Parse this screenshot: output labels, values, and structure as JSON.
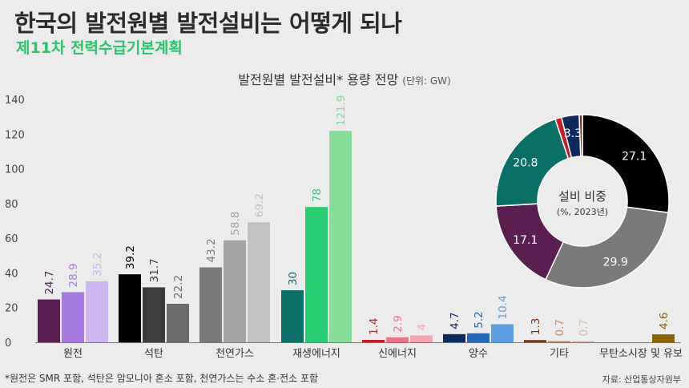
{
  "header": {
    "title": "한국의 발전원별 발전설비는 어떻게 되나",
    "subtitle": "제11차 전력수급기본계획"
  },
  "footer": {
    "footnote": "*원전은 SMR 포함, 석탄은 암모니아 혼소 포함, 천연가스는 수소 혼·전소 포함",
    "source": "자료: 산업통상자원부"
  },
  "chart_data": [
    {
      "type": "bar",
      "title": "발전원별 발전설비* 용량 전망",
      "unit_note": "(단위: GW)",
      "ylim": [
        0,
        140
      ],
      "yticks": [
        0,
        20,
        40,
        60,
        80,
        100,
        120,
        140
      ],
      "grid": false,
      "legend": "none",
      "categories": [
        "원전",
        "석탄",
        "천연가스",
        "재생에너지",
        "신에너지",
        "양수",
        "기타",
        "무탄소시장 및 유보"
      ],
      "groups": [
        {
          "values": [
            24.7,
            28.9,
            35.2
          ],
          "labels": [
            "24.7",
            "28.9",
            "35.2"
          ],
          "colors": [
            "#5a1f50",
            "#a57be0",
            "#cdb5ef"
          ]
        },
        {
          "values": [
            39.2,
            31.7,
            22.2
          ],
          "labels": [
            "39.2",
            "31.7",
            "22.2"
          ],
          "colors": [
            "#000000",
            "#3d3d3d",
            "#6b6b6b"
          ]
        },
        {
          "values": [
            43.2,
            58.8,
            69.2
          ],
          "labels": [
            "43.2",
            "58.8",
            "69.2"
          ],
          "colors": [
            "#7a7a7a",
            "#a3a3a3",
            "#c2c2c2"
          ]
        },
        {
          "values": [
            30,
            78,
            121.9
          ],
          "labels": [
            "30",
            "78",
            "121.9"
          ],
          "colors": [
            "#0a7067",
            "#29cd72",
            "#86dd97"
          ]
        },
        {
          "values": [
            1.4,
            2.9,
            4
          ],
          "labels": [
            "1.4",
            "2.9",
            "4"
          ],
          "colors": [
            "#c61d27",
            "#f07280",
            "#f4a4ae"
          ]
        },
        {
          "values": [
            4.7,
            5.2,
            10.4
          ],
          "labels": [
            "4.7",
            "5.2",
            "10.4"
          ],
          "colors": [
            "#0c2a5b",
            "#2467b8",
            "#5b9fe0"
          ]
        },
        {
          "values": [
            1.3,
            0.7,
            0.7
          ],
          "labels": [
            "1.3",
            "0.7",
            "0.7"
          ],
          "colors": [
            "#743818",
            "#c88a6c",
            "#e0b9a4"
          ]
        },
        {
          "values": [
            4.6
          ],
          "labels": [
            "4.6"
          ],
          "colors": [
            "#8b6400"
          ]
        }
      ]
    },
    {
      "type": "pie",
      "center_label": "설비 비중",
      "center_sublabel": "(%, 2023년)",
      "slices": [
        {
          "value": 27.1,
          "label": "27.1",
          "color": "#000000"
        },
        {
          "value": 29.9,
          "label": "29.9",
          "color": "#7a7a7a"
        },
        {
          "value": 17.1,
          "label": "17.1",
          "color": "#5a1f50"
        },
        {
          "value": 20.8,
          "label": "20.8",
          "color": "#0a7067"
        },
        {
          "value": 1.2,
          "label": "",
          "color": "#c61d27"
        },
        {
          "value": 3.3,
          "label": "3.3",
          "color": "#0c2a5b"
        },
        {
          "value": 0.6,
          "label": "",
          "color": "#743818"
        }
      ]
    }
  ]
}
